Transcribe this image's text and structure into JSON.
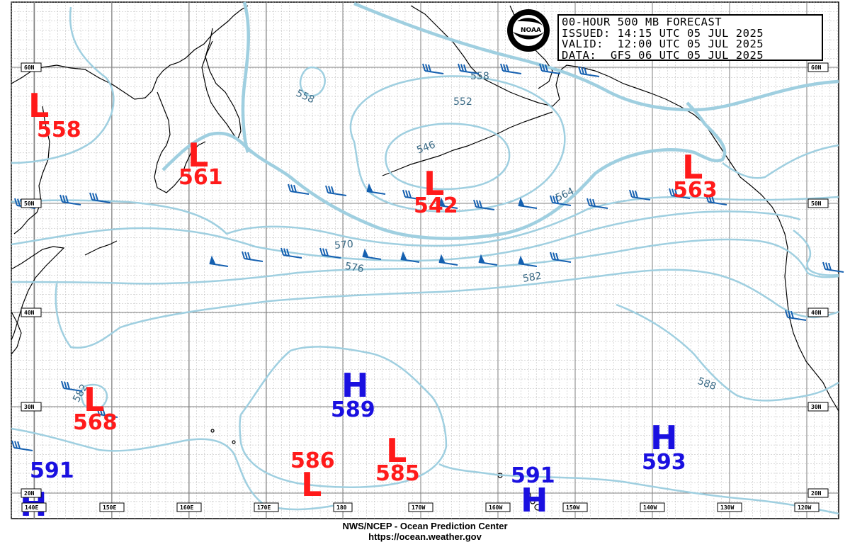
{
  "header": {
    "lines": [
      "00-HOUR 500 MB FORECAST",
      "ISSUED: 14:15 UTC 05 JUL 2025",
      "VALID:  12:00 UTC 05 JUL 2025",
      "DATA:  GFS 06 UTC 05 JUL 2025"
    ]
  },
  "logo": {
    "text": "NOAA",
    "icon": "noaa-logo"
  },
  "footer": {
    "line1": "NWS/NCEP - Ocean Prediction Center",
    "line2": "https://ocean.weather.gov"
  },
  "lat_labels": [
    "60N",
    "50N",
    "40N",
    "30N",
    "20N"
  ],
  "lon_labels": [
    "140E",
    "150E",
    "160E",
    "170E",
    "180",
    "170W",
    "160W",
    "150W",
    "140W",
    "130W",
    "120W"
  ],
  "contour_labels": [
    "558",
    "558",
    "552",
    "546",
    "564",
    "570",
    "576",
    "582",
    "588",
    "582"
  ],
  "systems": [
    {
      "type": "L",
      "value": "558"
    },
    {
      "type": "L",
      "value": "561"
    },
    {
      "type": "L",
      "value": "542"
    },
    {
      "type": "L",
      "value": "563"
    },
    {
      "type": "L",
      "value": "568"
    },
    {
      "type": "L",
      "value": "586"
    },
    {
      "type": "L",
      "value": "585"
    },
    {
      "type": "H",
      "value": "589"
    },
    {
      "type": "H",
      "value": "591"
    },
    {
      "type": "H",
      "value": "591"
    },
    {
      "type": "H",
      "value": "593"
    }
  ],
  "colors": {
    "contour": "#9fcfe0",
    "low": "#ff1a1a",
    "high": "#1a10e0",
    "barb": "#1560b0",
    "grid": "#b5b5b5"
  }
}
